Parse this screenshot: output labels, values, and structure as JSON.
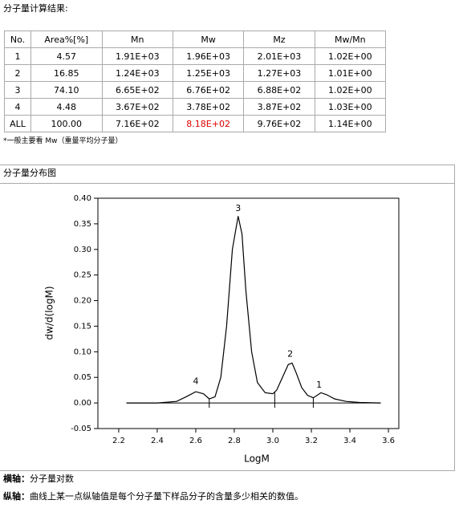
{
  "header": {
    "title": "分子量计算结果:"
  },
  "table": {
    "header": [
      "No.",
      "Area%[%]",
      "Mn",
      "Mw",
      "Mz",
      "Mw/Mn"
    ],
    "rows": [
      [
        "1",
        "4.57",
        "1.91E+03",
        "1.96E+03",
        "2.01E+03",
        "1.02E+00"
      ],
      [
        "2",
        "16.85",
        "1.24E+03",
        "1.25E+03",
        "1.27E+03",
        "1.01E+00"
      ],
      [
        "3",
        "74.10",
        "6.65E+02",
        "6.76E+02",
        "6.88E+02",
        "1.02E+00"
      ],
      [
        "4",
        "4.48",
        "3.67E+02",
        "3.78E+02",
        "3.87E+02",
        "1.03E+00"
      ],
      [
        "ALL",
        "100.00",
        "7.16E+02",
        "8.18E+02",
        "9.76E+02",
        "1.14E+00"
      ]
    ]
  },
  "note": "*一般主要看 Mw（重量平均分子量）",
  "section_title": "分子量分布图",
  "chart_data": {
    "type": "line",
    "xlabel": "LogM",
    "ylabel": "dw/d(logM)",
    "color": "#000000",
    "x": [
      2.24,
      2.4,
      2.5,
      2.55,
      2.6,
      2.64,
      2.67,
      2.7,
      2.73,
      2.76,
      2.79,
      2.82,
      2.84,
      2.86,
      2.89,
      2.92,
      2.96,
      3.0,
      3.02,
      3.05,
      3.08,
      3.1,
      3.12,
      3.15,
      3.18,
      3.21,
      3.25,
      3.28,
      3.32,
      3.38,
      3.45,
      3.56
    ],
    "values": [
      0,
      0,
      0.003,
      0.012,
      0.022,
      0.018,
      0.008,
      0.012,
      0.05,
      0.15,
      0.3,
      0.365,
      0.33,
      0.22,
      0.1,
      0.04,
      0.02,
      0.018,
      0.025,
      0.05,
      0.075,
      0.078,
      0.06,
      0.03,
      0.015,
      0.01,
      0.02,
      0.016,
      0.008,
      0.003,
      0.001,
      0
    ],
    "dividers": [
      2.67,
      3.01,
      3.21
    ],
    "annotations": [
      {
        "text": "4",
        "x": 2.6,
        "y": 0.042
      },
      {
        "text": "3",
        "x": 2.82,
        "y": 0.38
      },
      {
        "text": "2",
        "x": 3.09,
        "y": 0.095
      },
      {
        "text": "1",
        "x": 3.24,
        "y": 0.035
      }
    ],
    "xlim": [
      2.092,
      3.654
    ],
    "ylim": [
      -0.05,
      0.4
    ],
    "xticks": [
      2.2,
      2.4,
      2.6,
      2.8,
      {
        "value": 3,
        "label": "3.0"
      },
      3.2,
      3.4,
      3.6
    ],
    "yticks": [
      {
        "value": -0.05,
        "label": "-0.05"
      },
      {
        "value": 0,
        "label": "0.00"
      },
      {
        "value": 0.05,
        "label": "0.05"
      },
      {
        "value": 0.1,
        "label": "0.10"
      },
      {
        "value": 0.15,
        "label": "0.15"
      },
      {
        "value": 0.2,
        "label": "0.20"
      },
      {
        "value": 0.25,
        "label": "0.25"
      },
      {
        "value": 0.3,
        "label": "0.30"
      },
      {
        "value": 0.35,
        "label": "0.35"
      },
      {
        "value": 0.4,
        "label": "0.40"
      }
    ]
  },
  "footer": [
    {
      "label": "横轴：",
      "text": "分子量对数"
    },
    {
      "label": "纵轴：",
      "text": "曲线上某一点纵轴值是每个分子量下样品分子的含量多少相关的数值。"
    }
  ]
}
